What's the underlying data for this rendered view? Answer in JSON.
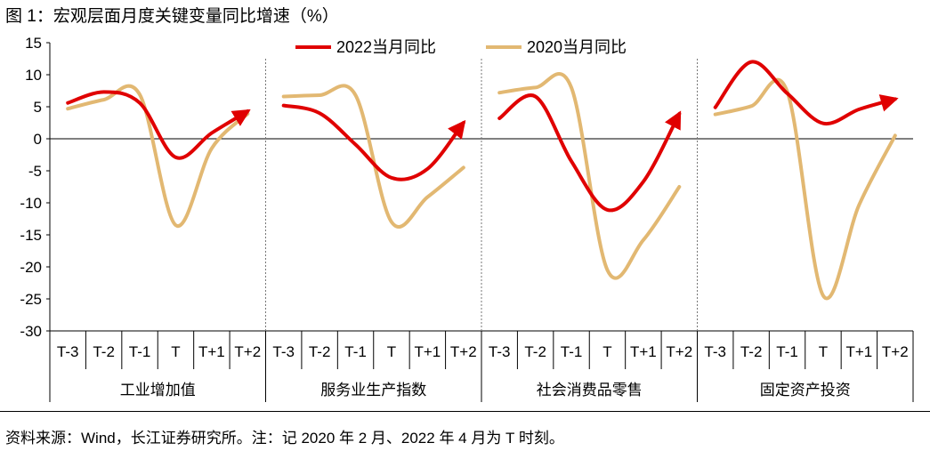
{
  "figure": {
    "title": "图 1：宏观层面月度关键变量同比增速（%）",
    "source": "资料来源：Wind，长江证券研究所。注：记 2020 年 2 月、2022 年 4 月为 T 时刻。"
  },
  "chart_data": {
    "type": "line",
    "ylim": [
      -30,
      15
    ],
    "yticks": [
      "15",
      "10",
      "5",
      "0",
      "-5",
      "-10",
      "-15",
      "-20",
      "-25",
      "-30"
    ],
    "ytick_values": [
      15,
      10,
      5,
      0,
      -5,
      -10,
      -15,
      -20,
      -25,
      -30
    ],
    "categories": [
      "T-3",
      "T-2",
      "T-1",
      "T",
      "T+1",
      "T+2"
    ],
    "legend_position": "top",
    "series_colors": [
      "#E00000",
      "#E2B872"
    ],
    "groups": [
      {
        "name": "工业增加值",
        "series": [
          {
            "name": "2022当月同比",
            "values": [
              5.6,
              7.3,
              5.6,
              -2.9,
              0.9,
              4.3
            ]
          },
          {
            "name": "2020当月同比",
            "values": [
              4.7,
              6.1,
              6.9,
              -13.5,
              -1.5,
              3.9
            ]
          }
        ]
      },
      {
        "name": "服务业生产指数",
        "series": [
          {
            "name": "2022当月同比",
            "values": [
              5.2,
              4.0,
              -0.9,
              -6.1,
              -4.7,
              2.5
            ]
          },
          {
            "name": "2020当月同比",
            "values": [
              6.6,
              6.8,
              6.8,
              -13.0,
              -9.1,
              -4.5
            ]
          }
        ]
      },
      {
        "name": "社会消费品零售",
        "series": [
          {
            "name": "2022当月同比",
            "values": [
              3.2,
              6.6,
              -3.5,
              -11.1,
              -6.7,
              3.9
            ]
          },
          {
            "name": "2020当月同比",
            "values": [
              7.2,
              8.0,
              8.0,
              -20.5,
              -15.8,
              -7.5
            ]
          }
        ]
      },
      {
        "name": "固定资产投资",
        "series": [
          {
            "name": "2022当月同比",
            "values": [
              4.9,
              12.0,
              7.1,
              2.4,
              4.6,
              6.2
            ]
          },
          {
            "name": "2020当月同比",
            "values": [
              3.8,
              5.1,
              7.4,
              -24.5,
              -10.3,
              0.5
            ]
          }
        ]
      }
    ]
  }
}
